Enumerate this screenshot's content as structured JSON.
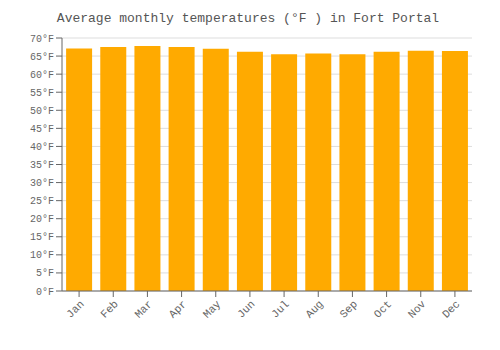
{
  "chart_data": {
    "type": "bar",
    "title": "Average monthly temperatures (°F ) in Fort Portal",
    "categories": [
      "Jan",
      "Feb",
      "Mar",
      "Apr",
      "May",
      "Jun",
      "Jul",
      "Aug",
      "Sep",
      "Oct",
      "Nov",
      "Dec"
    ],
    "values": [
      67.1,
      67.5,
      67.8,
      67.5,
      67.0,
      66.2,
      65.5,
      65.7,
      65.5,
      66.2,
      66.5,
      66.4
    ],
    "color": "#FFAA00",
    "ylim": [
      0,
      70
    ],
    "yticks": [
      {
        "value": 0,
        "label": "0°F"
      },
      {
        "value": 5,
        "label": "5°F"
      },
      {
        "value": 10,
        "label": "10°F"
      },
      {
        "value": 15,
        "label": "15°F"
      },
      {
        "value": 20,
        "label": "20°F"
      },
      {
        "value": 25,
        "label": "25°F"
      },
      {
        "value": 30,
        "label": "30°F"
      },
      {
        "value": 35,
        "label": "35°F"
      },
      {
        "value": 40,
        "label": "40°F"
      },
      {
        "value": 45,
        "label": "45°F"
      },
      {
        "value": 50,
        "label": "50°F"
      },
      {
        "value": 55,
        "label": "55°F"
      },
      {
        "value": 60,
        "label": "60°F"
      },
      {
        "value": 65,
        "label": "65°F"
      },
      {
        "value": 70,
        "label": "70°F"
      }
    ],
    "grid": true
  }
}
